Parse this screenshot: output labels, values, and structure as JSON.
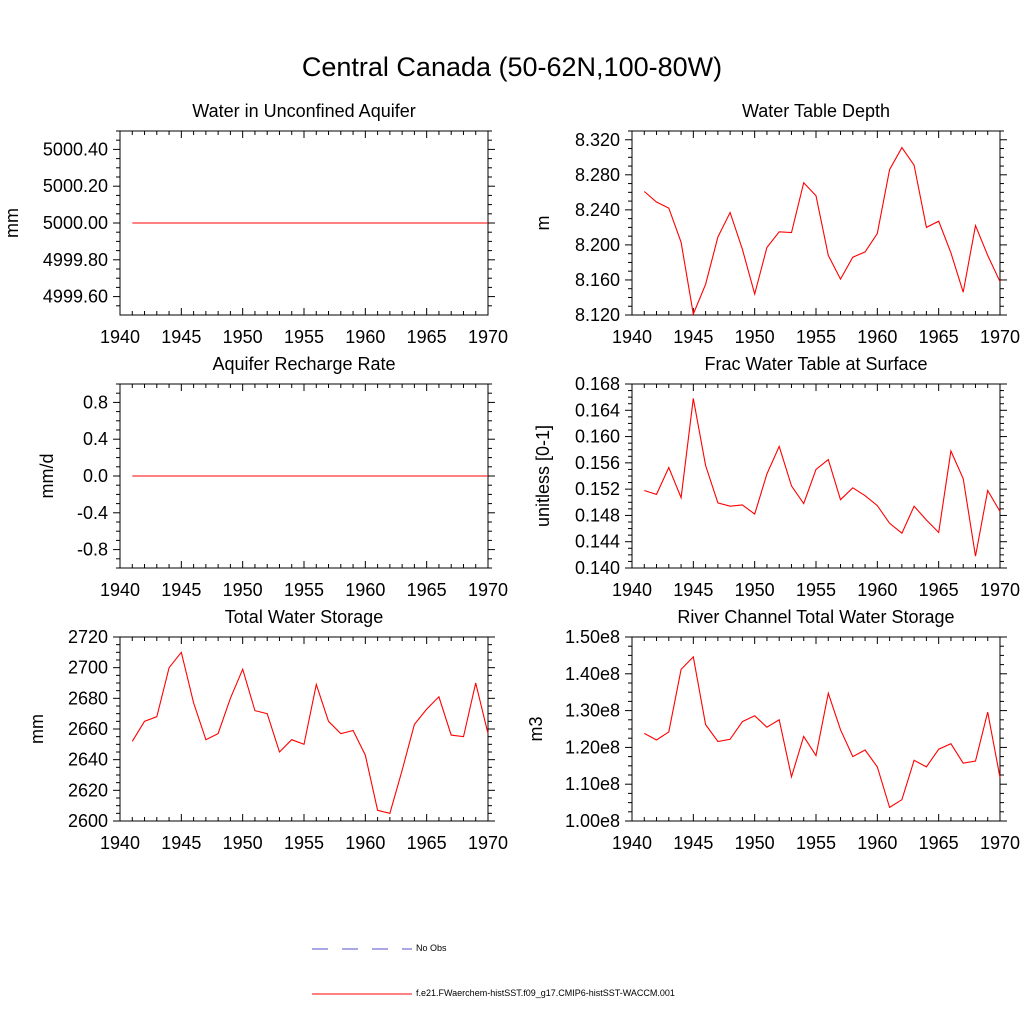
{
  "title": "Central Canada (50-62N,100-80W)",
  "colors": {
    "series": "#ff0000",
    "obs": "#5050c8",
    "axis": "#000000"
  },
  "legend": {
    "obs_label": "No Obs",
    "model_label": "f.e21.FWaerchem-histSST.f09_g17.CMIP6-histSST-WACCM.001"
  },
  "chart_data": [
    {
      "type": "line",
      "title": "Water in Unconfined Aquifer",
      "ylabel": "mm",
      "xlim": [
        1940,
        1970
      ],
      "ylim": [
        4999.5,
        5000.5
      ],
      "xticks": [
        1940,
        1945,
        1950,
        1955,
        1960,
        1965,
        1970
      ],
      "yticks": [
        4999.6,
        4999.8,
        5000.0,
        5000.2,
        5000.4
      ],
      "yticklabels": [
        "4999.60",
        "4999.80",
        "5000.00",
        "5000.20",
        "5000.40"
      ],
      "x": [
        1941,
        1942,
        1943,
        1944,
        1945,
        1946,
        1947,
        1948,
        1949,
        1950,
        1951,
        1952,
        1953,
        1954,
        1955,
        1956,
        1957,
        1958,
        1959,
        1960,
        1961,
        1962,
        1963,
        1964,
        1965,
        1966,
        1967,
        1968,
        1969,
        1970
      ],
      "y": [
        5000,
        5000,
        5000,
        5000,
        5000,
        5000,
        5000,
        5000,
        5000,
        5000,
        5000,
        5000,
        5000,
        5000,
        5000,
        5000,
        5000,
        5000,
        5000,
        5000,
        5000,
        5000,
        5000,
        5000,
        5000,
        5000,
        5000,
        5000,
        5000,
        5000
      ]
    },
    {
      "type": "line",
      "title": "Water Table Depth",
      "ylabel": "m",
      "xlim": [
        1940,
        1970
      ],
      "ylim": [
        8.12,
        8.33
      ],
      "xticks": [
        1940,
        1945,
        1950,
        1955,
        1960,
        1965,
        1970
      ],
      "yticks": [
        8.12,
        8.16,
        8.2,
        8.24,
        8.28,
        8.32
      ],
      "yticklabels": [
        "8.120",
        "8.160",
        "8.200",
        "8.240",
        "8.280",
        "8.320"
      ],
      "x": [
        1941,
        1942,
        1943,
        1944,
        1945,
        1946,
        1947,
        1948,
        1949,
        1950,
        1951,
        1952,
        1953,
        1954,
        1955,
        1956,
        1957,
        1958,
        1959,
        1960,
        1961,
        1962,
        1963,
        1964,
        1965,
        1966,
        1967,
        1968,
        1969,
        1970
      ],
      "y": [
        8.261,
        8.249,
        8.242,
        8.203,
        8.121,
        8.155,
        8.209,
        8.237,
        8.195,
        8.144,
        8.197,
        8.215,
        8.214,
        8.271,
        8.256,
        8.188,
        8.161,
        8.186,
        8.192,
        8.213,
        8.286,
        8.311,
        8.291,
        8.22,
        8.227,
        8.191,
        8.146,
        8.222,
        8.188,
        8.158
      ]
    },
    {
      "type": "line",
      "title": "Aquifer Recharge Rate",
      "ylabel": "mm/d",
      "xlim": [
        1940,
        1970
      ],
      "ylim": [
        -1,
        1
      ],
      "xticks": [
        1940,
        1945,
        1950,
        1955,
        1960,
        1965,
        1970
      ],
      "yticks": [
        -0.8,
        -0.4,
        0,
        0.4,
        0.8
      ],
      "yticklabels": [
        "-0.8",
        "-0.4",
        "0.0",
        "0.4",
        "0.8"
      ],
      "x": [
        1941,
        1942,
        1943,
        1944,
        1945,
        1946,
        1947,
        1948,
        1949,
        1950,
        1951,
        1952,
        1953,
        1954,
        1955,
        1956,
        1957,
        1958,
        1959,
        1960,
        1961,
        1962,
        1963,
        1964,
        1965,
        1966,
        1967,
        1968,
        1969,
        1970
      ],
      "y": [
        0,
        0,
        0,
        0,
        0,
        0,
        0,
        0,
        0,
        0,
        0,
        0,
        0,
        0,
        0,
        0,
        0,
        0,
        0,
        0,
        0,
        0,
        0,
        0,
        0,
        0,
        0,
        0,
        0,
        0
      ]
    },
    {
      "type": "line",
      "title": "Frac Water Table at Surface",
      "ylabel": "unitless [0-1]",
      "xlim": [
        1940,
        1970
      ],
      "ylim": [
        0.14,
        0.168
      ],
      "xticks": [
        1940,
        1945,
        1950,
        1955,
        1960,
        1965,
        1970
      ],
      "yticks": [
        0.14,
        0.144,
        0.148,
        0.152,
        0.156,
        0.16,
        0.164,
        0.168
      ],
      "yticklabels": [
        "0.140",
        "0.144",
        "0.148",
        "0.152",
        "0.156",
        "0.160",
        "0.164",
        "0.168"
      ],
      "x": [
        1941,
        1942,
        1943,
        1944,
        1945,
        1946,
        1947,
        1948,
        1949,
        1950,
        1951,
        1952,
        1953,
        1954,
        1955,
        1956,
        1957,
        1958,
        1959,
        1960,
        1961,
        1962,
        1963,
        1964,
        1965,
        1966,
        1967,
        1968,
        1969,
        1970
      ],
      "y": [
        0.1518,
        0.1512,
        0.1553,
        0.1507,
        0.1658,
        0.1556,
        0.1499,
        0.1494,
        0.1496,
        0.1482,
        0.1543,
        0.1585,
        0.1525,
        0.1498,
        0.155,
        0.1565,
        0.1504,
        0.1522,
        0.151,
        0.1495,
        0.1468,
        0.1453,
        0.1494,
        0.1473,
        0.1454,
        0.1578,
        0.1536,
        0.1418,
        0.1518,
        0.1486
      ]
    },
    {
      "type": "line",
      "title": "Total Water Storage",
      "ylabel": "mm",
      "xlim": [
        1940,
        1970
      ],
      "ylim": [
        2600,
        2720
      ],
      "xticks": [
        1940,
        1945,
        1950,
        1955,
        1960,
        1965,
        1970
      ],
      "yticks": [
        2600,
        2620,
        2640,
        2660,
        2680,
        2700,
        2720
      ],
      "yticklabels": [
        "2600",
        "2620",
        "2640",
        "2660",
        "2680",
        "2700",
        "2720"
      ],
      "x": [
        1941,
        1942,
        1943,
        1944,
        1945,
        1946,
        1947,
        1948,
        1949,
        1950,
        1951,
        1952,
        1953,
        1954,
        1955,
        1956,
        1957,
        1958,
        1959,
        1960,
        1961,
        1962,
        1963,
        1964,
        1965,
        1966,
        1967,
        1968,
        1969,
        1970
      ],
      "y": [
        2652,
        2665,
        2668,
        2700,
        2710,
        2677,
        2653,
        2657,
        2680,
        2699,
        2672,
        2670,
        2645,
        2653,
        2650,
        2689,
        2665,
        2657,
        2659,
        2643,
        2607,
        2605,
        2633,
        2663,
        2673,
        2681,
        2656,
        2655,
        2690,
        2657
      ]
    },
    {
      "type": "line",
      "title": "River Channel Total Water Storage",
      "ylabel": "m3",
      "xlim": [
        1940,
        1970
      ],
      "ylim": [
        100000000.0,
        150000000.0
      ],
      "xticks": [
        1940,
        1945,
        1950,
        1955,
        1960,
        1965,
        1970
      ],
      "yticks": [
        100000000.0,
        110000000.0,
        120000000.0,
        130000000.0,
        140000000.0,
        150000000.0
      ],
      "yticklabels": [
        "1.00e8",
        "1.10e8",
        "1.20e8",
        "1.30e8",
        "1.40e8",
        "1.50e8"
      ],
      "x": [
        1941,
        1942,
        1943,
        1944,
        1945,
        1946,
        1947,
        1948,
        1949,
        1950,
        1951,
        1952,
        1953,
        1954,
        1955,
        1956,
        1957,
        1958,
        1959,
        1960,
        1961,
        1962,
        1963,
        1964,
        1965,
        1966,
        1967,
        1968,
        1969,
        1970
      ],
      "y": [
        123800000.0,
        122000000.0,
        124200000.0,
        141200000.0,
        144600000.0,
        126200000.0,
        121600000.0,
        122200000.0,
        127000000.0,
        128600000.0,
        125500000.0,
        127500000.0,
        112000000.0,
        123000000.0,
        117800000.0,
        134700000.0,
        124800000.0,
        117500000.0,
        119300000.0,
        114700000.0,
        103700000.0,
        105800000.0,
        116500000.0,
        114700000.0,
        119500000.0,
        121000000.0,
        115700000.0,
        116300000.0,
        129600000.0,
        111800000.0
      ]
    }
  ]
}
